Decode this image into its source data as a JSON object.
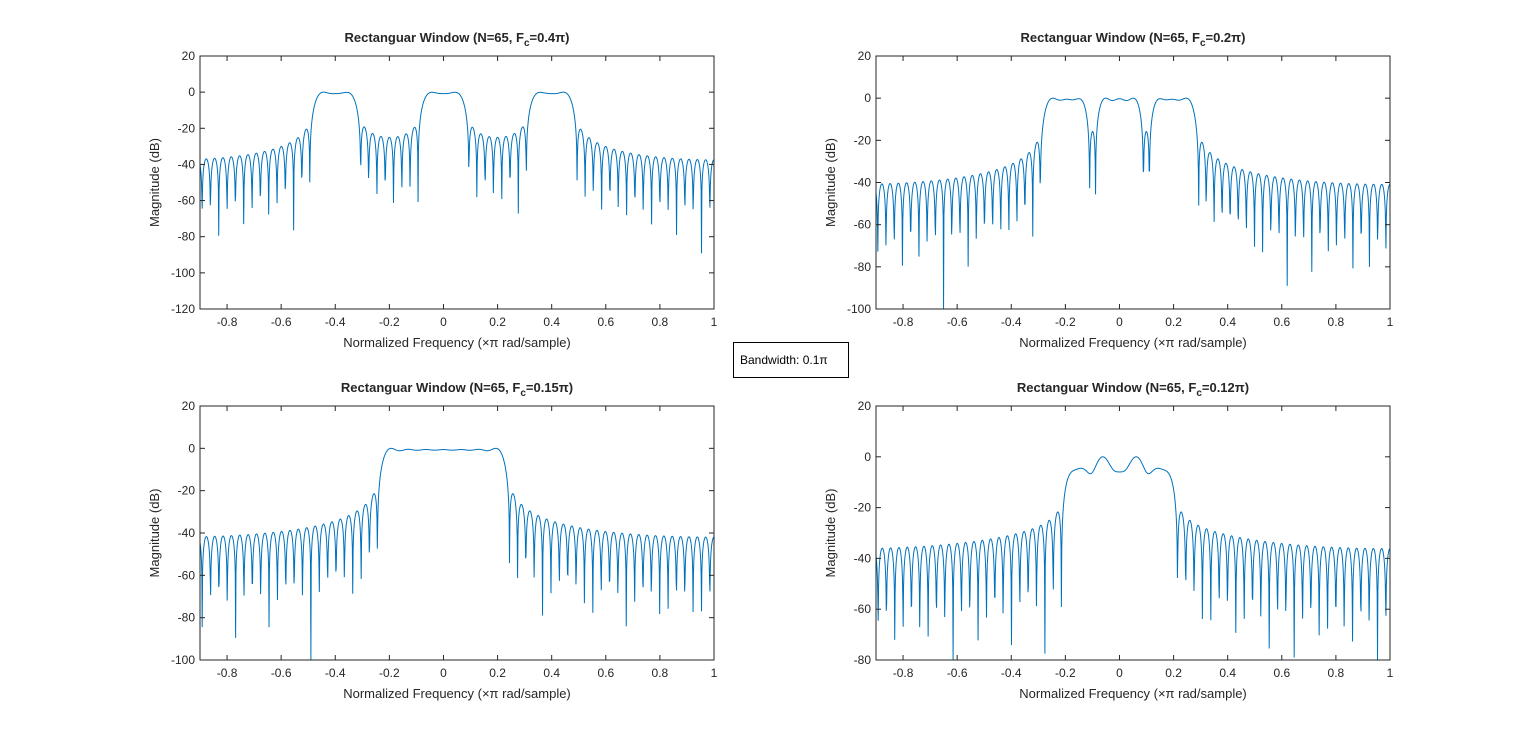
{
  "figure": {
    "background": "#ffffff",
    "line_color": "#0072bd",
    "axis_color": "#262626"
  },
  "annotation": {
    "text": "Bandwidth: 0.1π"
  },
  "chart_data": [
    {
      "type": "line",
      "title": "Rectanguar Window (N=65, F",
      "title_sub": "c",
      "title_tail": "=0.4π)",
      "xlabel": "Normalized Frequency  (×π rad/sample)",
      "ylabel": "Magnitude (dB)",
      "xlim": [
        -0.9,
        1
      ],
      "ylim": [
        -120,
        20
      ],
      "xticks": [
        -0.8,
        -0.6,
        -0.4,
        -0.2,
        0,
        0.2,
        0.4,
        0.6,
        0.8,
        1
      ],
      "xtick_labels": [
        "-0.8",
        "-0.6",
        "-0.4",
        "-0.2",
        "0",
        "0.2",
        "0.4",
        "0.6",
        "0.8",
        "1"
      ],
      "yticks": [
        -120,
        -100,
        -80,
        -60,
        -40,
        -20,
        0,
        20
      ],
      "ytick_labels": [
        "-120",
        "-100",
        "-80",
        "-60",
        "-40",
        "-20",
        "0",
        "20"
      ],
      "series": [
        {
          "passband_centers": [
            -0.4,
            0,
            0.4
          ],
          "bandwidth": 0.1
        }
      ],
      "grid": false
    },
    {
      "type": "line",
      "title": "Rectanguar Window (N=65, F",
      "title_sub": "c",
      "title_tail": "=0.2π)",
      "xlabel": "Normalized Frequency  (×π rad/sample)",
      "ylabel": "Magnitude (dB)",
      "xlim": [
        -0.9,
        1
      ],
      "ylim": [
        -100,
        20
      ],
      "xticks": [
        -0.8,
        -0.6,
        -0.4,
        -0.2,
        0,
        0.2,
        0.4,
        0.6,
        0.8,
        1
      ],
      "xtick_labels": [
        "-0.8",
        "-0.6",
        "-0.4",
        "-0.2",
        "0",
        "0.2",
        "0.4",
        "0.6",
        "0.8",
        "1"
      ],
      "yticks": [
        -100,
        -80,
        -60,
        -40,
        -20,
        0,
        20
      ],
      "ytick_labels": [
        "-100",
        "-80",
        "-60",
        "-40",
        "-20",
        "0",
        "20"
      ],
      "series": [
        {
          "passband_centers": [
            -0.2,
            0,
            0.2
          ],
          "bandwidth": 0.1
        }
      ],
      "grid": false
    },
    {
      "type": "line",
      "title": "Rectanguar Window (N=65, F",
      "title_sub": "c",
      "title_tail": "=0.15π)",
      "xlabel": "Normalized Frequency  (×π rad/sample)",
      "ylabel": "Magnitude (dB)",
      "xlim": [
        -0.9,
        1
      ],
      "ylim": [
        -100,
        20
      ],
      "xticks": [
        -0.8,
        -0.6,
        -0.4,
        -0.2,
        0,
        0.2,
        0.4,
        0.6,
        0.8,
        1
      ],
      "xtick_labels": [
        "-0.8",
        "-0.6",
        "-0.4",
        "-0.2",
        "0",
        "0.2",
        "0.4",
        "0.6",
        "0.8",
        "1"
      ],
      "yticks": [
        -100,
        -80,
        -60,
        -40,
        -20,
        0,
        20
      ],
      "ytick_labels": [
        "-100",
        "-80",
        "-60",
        "-40",
        "-20",
        "0",
        "20"
      ],
      "series": [
        {
          "passband_centers": [
            -0.15,
            0,
            0.15
          ],
          "bandwidth": 0.1
        }
      ],
      "grid": false
    },
    {
      "type": "line",
      "title": "Rectanguar Window (N=65, F",
      "title_sub": "c",
      "title_tail": "=0.12π)",
      "xlabel": "Normalized Frequency  (×π rad/sample)",
      "ylabel": "Magnitude (dB)",
      "xlim": [
        -0.9,
        1
      ],
      "ylim": [
        -80,
        20
      ],
      "xticks": [
        -0.8,
        -0.6,
        -0.4,
        -0.2,
        0,
        0.2,
        0.4,
        0.6,
        0.8,
        1
      ],
      "xtick_labels": [
        "-0.8",
        "-0.6",
        "-0.4",
        "-0.2",
        "0",
        "0.2",
        "0.4",
        "0.6",
        "0.8",
        "1"
      ],
      "yticks": [
        -80,
        -60,
        -40,
        -20,
        0,
        20
      ],
      "ytick_labels": [
        "-80",
        "-60",
        "-40",
        "-20",
        "0",
        "20"
      ],
      "series": [
        {
          "passband_centers": [
            -0.12,
            0,
            0.12
          ],
          "bandwidth": 0.1
        }
      ],
      "grid": false
    }
  ]
}
